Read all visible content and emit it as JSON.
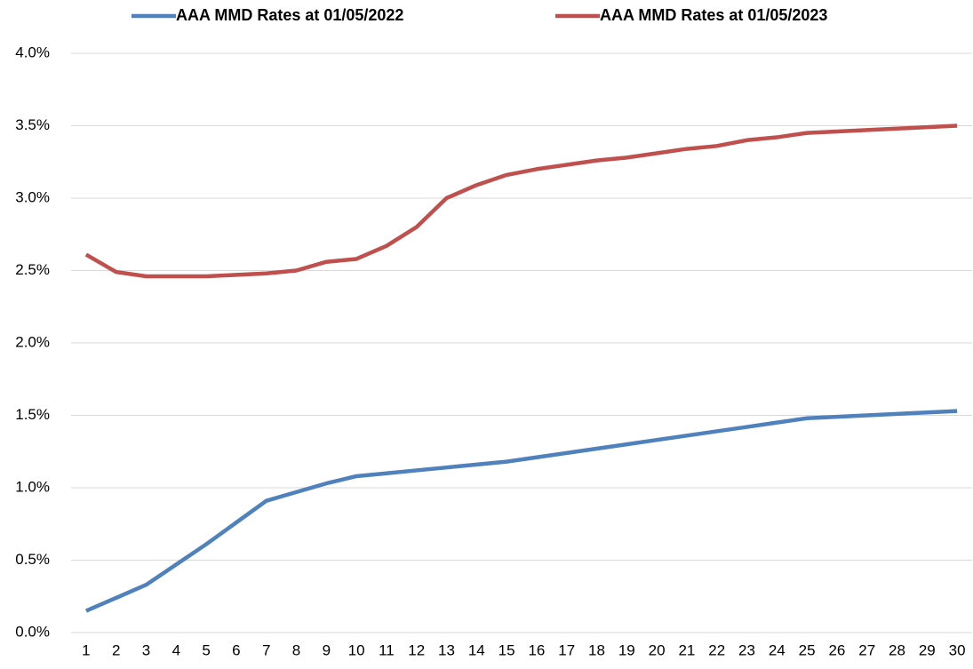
{
  "chart_data": {
    "type": "line",
    "categories": [
      1,
      2,
      3,
      4,
      5,
      6,
      7,
      8,
      9,
      10,
      11,
      12,
      13,
      14,
      15,
      16,
      17,
      18,
      19,
      20,
      21,
      22,
      23,
      24,
      25,
      26,
      27,
      28,
      29,
      30
    ],
    "series": [
      {
        "name": "AAA MMD Rates at 01/05/2022",
        "color": "#4f81bd",
        "values": [
          0.15,
          0.24,
          0.33,
          0.47,
          0.61,
          0.76,
          0.91,
          0.97,
          1.03,
          1.08,
          1.1,
          1.12,
          1.14,
          1.16,
          1.18,
          1.21,
          1.24,
          1.27,
          1.3,
          1.33,
          1.36,
          1.39,
          1.42,
          1.45,
          1.48,
          1.49,
          1.5,
          1.51,
          1.52,
          1.53
        ]
      },
      {
        "name": "AAA MMD Rates at 01/05/2023",
        "color": "#c0504d",
        "values": [
          2.61,
          2.49,
          2.46,
          2.46,
          2.46,
          2.47,
          2.48,
          2.5,
          2.56,
          2.58,
          2.67,
          2.8,
          3.0,
          3.09,
          3.16,
          3.2,
          3.23,
          3.26,
          3.28,
          3.31,
          3.34,
          3.36,
          3.4,
          3.42,
          3.45,
          3.46,
          3.47,
          3.48,
          3.49,
          3.5
        ]
      }
    ],
    "ylim": [
      0,
      4
    ],
    "yticks": [
      {
        "value": 0,
        "label": "0.0%"
      },
      {
        "value": 0.5,
        "label": "0.5%"
      },
      {
        "value": 1,
        "label": "1.0%"
      },
      {
        "value": 1.5,
        "label": "1.5%"
      },
      {
        "value": 2,
        "label": "2.0%"
      },
      {
        "value": 2.5,
        "label": "2.5%"
      },
      {
        "value": 3,
        "label": "3.0%"
      },
      {
        "value": 3.5,
        "label": "3.5%"
      },
      {
        "value": 4,
        "label": "4.0%"
      }
    ],
    "grid": true,
    "legend": "top"
  }
}
